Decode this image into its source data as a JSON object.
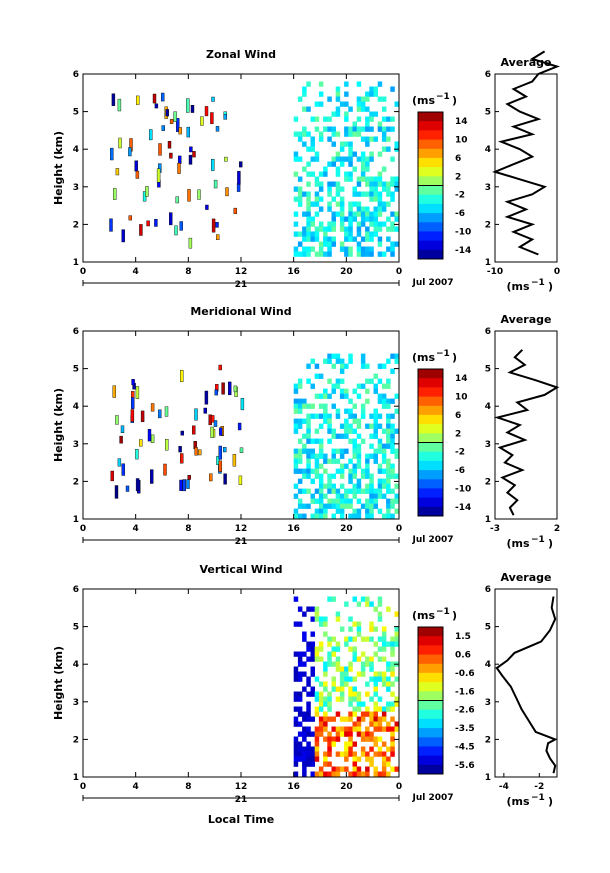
{
  "figure": {
    "x_tick_labels": [
      "0",
      "4",
      "8",
      "12",
      "16",
      "20",
      "0"
    ],
    "date_label": "21",
    "month_label": "Jul 2007",
    "xlabel": "Local Time",
    "ylabel": "Height (km)",
    "cbar_unit": "(ms",
    "cbar_unit_exp": "−1",
    "avg_unit": "(ms",
    "avg_unit_exp": "−1"
  },
  "chart_data": [
    {
      "type": "heatmap",
      "title": "Zonal Wind",
      "xlabel": "Local Time",
      "ylabel": "Height (km)",
      "xlim": [
        0,
        24
      ],
      "ylim": [
        1,
        6
      ],
      "y_ticks": [
        1,
        2,
        3,
        4,
        5,
        6
      ],
      "colorbar": {
        "ticks": [
          "14",
          "10",
          "6",
          "2",
          "-2",
          "-6",
          "-10",
          "-14"
        ],
        "range": [
          -16,
          16
        ]
      },
      "data_region": {
        "x": [
          16,
          24
        ],
        "y": [
          1.2,
          5.8
        ]
      },
      "sparse_region": {
        "x": [
          2,
          12
        ],
        "y": [
          1.5,
          5.5
        ]
      },
      "average_profile": {
        "title": "Average",
        "xlabel": "(ms⁻¹)",
        "xlim": [
          -10,
          0
        ],
        "x_ticks": [
          "-10",
          "0"
        ],
        "heights": [
          1.2,
          1.4,
          1.6,
          1.8,
          2.0,
          2.2,
          2.4,
          2.6,
          2.8,
          3.0,
          3.2,
          3.4,
          3.6,
          3.8,
          4.0,
          4.2,
          4.4,
          4.6,
          4.8,
          5.0,
          5.2,
          5.4,
          5.6,
          5.8,
          6.0,
          6.2,
          6.4,
          6.6
        ],
        "values": [
          -3,
          -6,
          -4,
          -7,
          -4,
          -8,
          -5,
          -8,
          -4,
          -2,
          -6,
          -10,
          -7,
          -4,
          -6,
          -9,
          -4,
          -7,
          -3,
          -6,
          -8,
          -5,
          -7,
          -4,
          -3,
          0,
          -4,
          -2
        ]
      }
    },
    {
      "type": "heatmap",
      "title": "Meridional Wind",
      "xlabel": "Local Time",
      "ylabel": "Height (km)",
      "xlim": [
        0,
        24
      ],
      "ylim": [
        1,
        6
      ],
      "y_ticks": [
        1,
        2,
        3,
        4,
        5,
        6
      ],
      "colorbar": {
        "ticks": [
          "14",
          "10",
          "6",
          "2",
          "-2",
          "-6",
          "-10",
          "-14"
        ],
        "range": [
          -16,
          16
        ]
      },
      "data_region": {
        "x": [
          16,
          24
        ],
        "y": [
          1.1,
          5.4
        ]
      },
      "sparse_region": {
        "x": [
          2,
          12
        ],
        "y": [
          1.8,
          5.2
        ]
      },
      "average_profile": {
        "title": "Average",
        "xlabel": "(ms⁻¹)",
        "xlim": [
          -3,
          2
        ],
        "x_ticks": [
          "-3",
          "2"
        ],
        "heights": [
          1.1,
          1.3,
          1.5,
          1.7,
          1.9,
          2.1,
          2.3,
          2.5,
          2.7,
          2.9,
          3.1,
          3.3,
          3.5,
          3.7,
          3.9,
          4.1,
          4.3,
          4.5,
          4.7,
          4.9,
          5.1,
          5.3,
          5.5
        ],
        "values": [
          -1.5,
          -1.8,
          -1.2,
          -2.0,
          -1.4,
          -2.4,
          -0.8,
          -2.2,
          -1.6,
          -2.6,
          -0.6,
          -2.0,
          -1.0,
          -2.8,
          -0.4,
          -1.2,
          1.0,
          2.0,
          0.2,
          -1.8,
          -0.6,
          -1.4,
          -0.8
        ]
      }
    },
    {
      "type": "heatmap",
      "title": "Vertical Wind",
      "xlabel": "Local Time",
      "ylabel": "Height (km)",
      "xlim": [
        0,
        24
      ],
      "ylim": [
        1,
        6
      ],
      "y_ticks": [
        1,
        2,
        3,
        4,
        5,
        6
      ],
      "colorbar": {
        "ticks": [
          "1.5",
          "0.6",
          "-0.6",
          "-1.6",
          "-2.6",
          "-3.5",
          "-4.5",
          "-5.6"
        ],
        "range": [
          -6,
          2
        ]
      },
      "data_region": {
        "x": [
          16,
          24
        ],
        "y": [
          1.1,
          5.8
        ]
      },
      "average_profile": {
        "title": "Average",
        "xlabel": "(ms⁻¹)",
        "xlim": [
          -4.5,
          -1
        ],
        "x_ticks": [
          "-4",
          "-2"
        ],
        "heights": [
          1.1,
          1.3,
          1.5,
          1.7,
          1.9,
          2.0,
          2.2,
          2.5,
          2.8,
          3.1,
          3.4,
          3.7,
          3.9,
          4.1,
          4.3,
          4.6,
          4.9,
          5.2,
          5.5,
          5.8
        ],
        "values": [
          -1.2,
          -1.1,
          -1.4,
          -1.6,
          -1.5,
          -1.1,
          -2.2,
          -2.6,
          -3.0,
          -3.3,
          -3.6,
          -4.1,
          -4.4,
          -3.8,
          -3.4,
          -1.9,
          -1.4,
          -1.1,
          -1.3,
          -1.2
        ]
      }
    }
  ]
}
